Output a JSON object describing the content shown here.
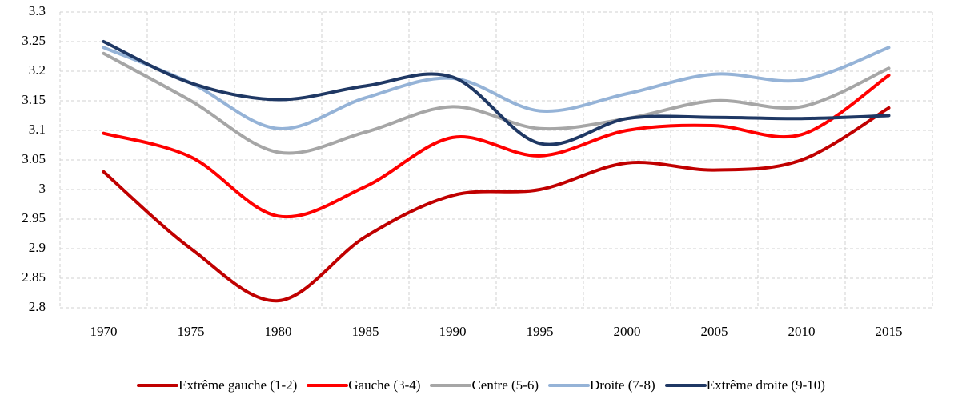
{
  "chart_data": {
    "type": "line",
    "categories": [
      "1970",
      "1975",
      "1980",
      "1985",
      "1990",
      "1995",
      "2000",
      "2005",
      "2010",
      "2015"
    ],
    "series": [
      {
        "name": "Extrême gauche (1-2)",
        "color": "#c00000",
        "values": [
          3.03,
          2.9,
          2.812,
          2.92,
          2.99,
          3.0,
          3.045,
          3.033,
          3.05,
          3.138
        ]
      },
      {
        "name": "Gauche (3-4)",
        "color": "#ff0000",
        "values": [
          3.095,
          3.055,
          2.955,
          3.005,
          3.088,
          3.057,
          3.1,
          3.108,
          3.093,
          3.193
        ]
      },
      {
        "name": "Centre (5-6)",
        "color": "#a6a6a6",
        "values": [
          3.23,
          3.15,
          3.063,
          3.097,
          3.14,
          3.103,
          3.12,
          3.15,
          3.14,
          3.205
        ]
      },
      {
        "name": "Droite (7-8)",
        "color": "#95b3d7",
        "values": [
          3.24,
          3.18,
          3.103,
          3.155,
          3.188,
          3.133,
          3.162,
          3.195,
          3.185,
          3.24
        ]
      },
      {
        "name": "Extrême droite (9-10)",
        "color": "#1f3864",
        "values": [
          3.25,
          3.18,
          3.152,
          3.175,
          3.19,
          3.078,
          3.12,
          3.122,
          3.12,
          3.125
        ]
      }
    ],
    "ylim": [
      2.8,
      3.3
    ],
    "yticks": [
      2.8,
      2.85,
      2.9,
      2.95,
      3,
      3.05,
      3.1,
      3.15,
      3.2,
      3.25,
      3.3
    ],
    "grid": true
  }
}
